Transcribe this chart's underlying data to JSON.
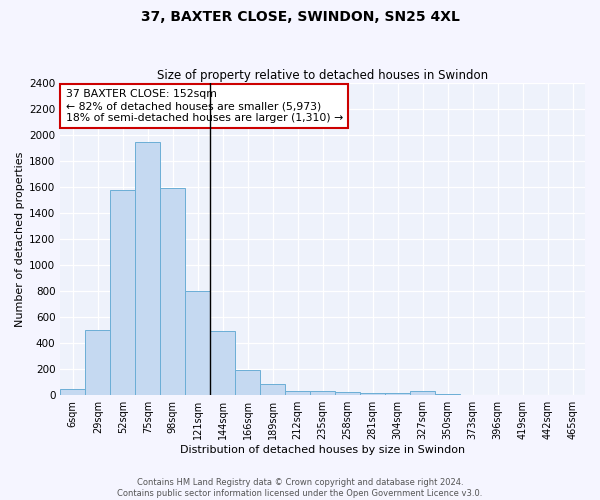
{
  "title": "37, BAXTER CLOSE, SWINDON, SN25 4XL",
  "subtitle": "Size of property relative to detached houses in Swindon",
  "xlabel": "Distribution of detached houses by size in Swindon",
  "ylabel": "Number of detached properties",
  "categories": [
    "6sqm",
    "29sqm",
    "52sqm",
    "75sqm",
    "98sqm",
    "121sqm",
    "144sqm",
    "166sqm",
    "189sqm",
    "212sqm",
    "235sqm",
    "258sqm",
    "281sqm",
    "304sqm",
    "327sqm",
    "350sqm",
    "373sqm",
    "396sqm",
    "419sqm",
    "442sqm",
    "465sqm"
  ],
  "values": [
    50,
    500,
    1580,
    1950,
    1590,
    800,
    490,
    195,
    90,
    35,
    30,
    25,
    20,
    20,
    30,
    10,
    5,
    5,
    0,
    0,
    0
  ],
  "bar_color": "#c5d9f1",
  "bar_edge_color": "#6baed6",
  "vline_x_index": 6,
  "annotation_title": "37 BAXTER CLOSE: 152sqm",
  "annotation_line1": "← 82% of detached houses are smaller (5,973)",
  "annotation_line2": "18% of semi-detached houses are larger (1,310) →",
  "annotation_box_facecolor": "#ffffff",
  "annotation_box_edgecolor": "#cc0000",
  "ylim": [
    0,
    2400
  ],
  "yticks": [
    0,
    200,
    400,
    600,
    800,
    1000,
    1200,
    1400,
    1600,
    1800,
    2000,
    2200,
    2400
  ],
  "vline_color": "#000000",
  "plot_bg_color": "#eef2fb",
  "fig_bg_color": "#f5f5ff",
  "grid_color": "#ffffff",
  "footer_line1": "Contains HM Land Registry data © Crown copyright and database right 2024.",
  "footer_line2": "Contains public sector information licensed under the Open Government Licence v3.0."
}
